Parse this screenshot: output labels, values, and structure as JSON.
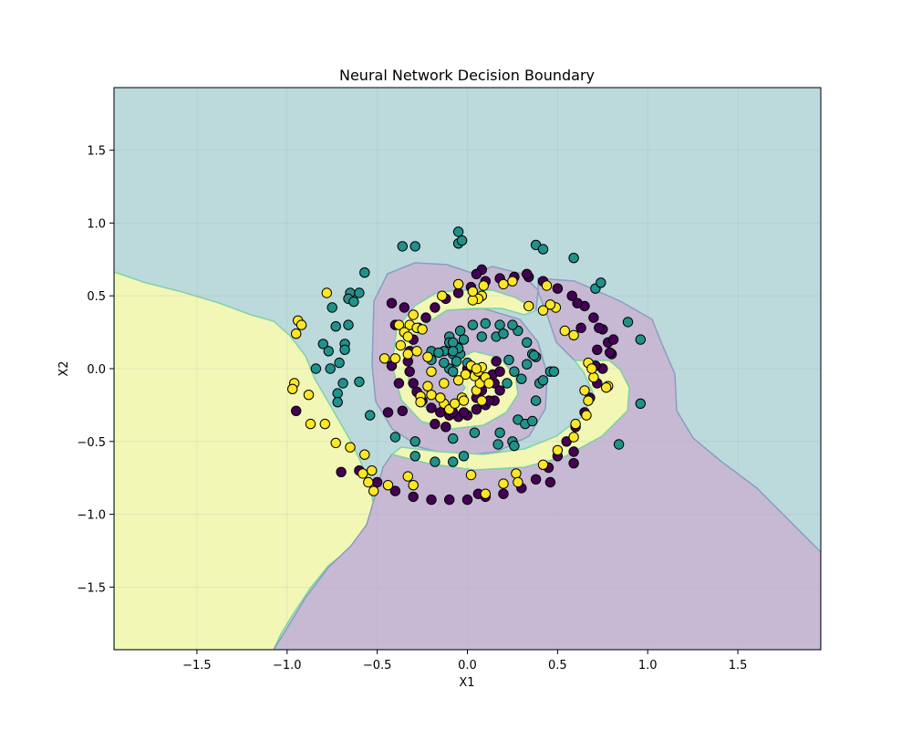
{
  "chart_data": {
    "type": "scatter",
    "title": "Neural Network Decision Boundary",
    "xlabel": "X1",
    "ylabel": "X2",
    "xlim": [
      -1.96,
      1.96
    ],
    "ylim": [
      -1.93,
      1.93
    ],
    "xticks": [
      -1.5,
      -1.0,
      -0.5,
      0.0,
      0.5,
      1.0,
      1.5
    ],
    "yticks": [
      -1.5,
      -1.0,
      -0.5,
      0.0,
      0.5,
      1.0,
      1.5
    ],
    "xtick_labels": [
      "−1.5",
      "−1.0",
      "−0.5",
      "0.0",
      "0.5",
      "1.0",
      "1.5"
    ],
    "ytick_labels": [
      "−1.5",
      "−1.0",
      "−0.5",
      "0.0",
      "0.5",
      "1.0",
      "1.5"
    ],
    "grid": true,
    "colors": {
      "class_0": "#440154",
      "class_1": "#21918c",
      "class_2": "#fde725",
      "region_0": "#c7b9d4",
      "region_1": "#bcd9dc",
      "region_2": "#f2f7b6"
    },
    "series": [
      {
        "class": 0,
        "points": [
          [
            0.0,
            0.0
          ],
          [
            0.05,
            -0.05
          ],
          [
            0.1,
            -0.08
          ],
          [
            0.15,
            -0.1
          ],
          [
            0.18,
            -0.15
          ],
          [
            0.15,
            -0.22
          ],
          [
            0.1,
            -0.25
          ],
          [
            0.05,
            -0.28
          ],
          [
            0.0,
            -0.32
          ],
          [
            -0.05,
            -0.33
          ],
          [
            -0.1,
            -0.32
          ],
          [
            -0.15,
            -0.3
          ],
          [
            -0.2,
            -0.27
          ],
          [
            -0.25,
            -0.22
          ],
          [
            -0.28,
            -0.16
          ],
          [
            -0.3,
            -0.1
          ],
          [
            -0.32,
            -0.02
          ],
          [
            -0.33,
            0.05
          ],
          [
            -0.32,
            0.12
          ],
          [
            -0.3,
            0.2
          ],
          [
            -0.27,
            0.28
          ],
          [
            -0.23,
            0.35
          ],
          [
            -0.18,
            0.42
          ],
          [
            -0.12,
            0.48
          ],
          [
            -0.05,
            0.52
          ],
          [
            0.02,
            0.56
          ],
          [
            0.1,
            0.6
          ],
          [
            0.18,
            0.62
          ],
          [
            0.26,
            0.63
          ],
          [
            0.34,
            0.63
          ],
          [
            0.42,
            0.6
          ],
          [
            0.5,
            0.55
          ],
          [
            0.58,
            0.5
          ],
          [
            0.65,
            0.43
          ],
          [
            0.7,
            0.35
          ],
          [
            0.75,
            0.27
          ],
          [
            0.78,
            0.18
          ],
          [
            0.8,
            0.1
          ],
          [
            0.75,
            0.0
          ],
          [
            0.72,
            -0.1
          ],
          [
            0.68,
            -0.2
          ],
          [
            0.65,
            -0.3
          ],
          [
            0.6,
            -0.4
          ],
          [
            0.55,
            -0.5
          ],
          [
            0.5,
            -0.6
          ],
          [
            0.45,
            -0.68
          ],
          [
            0.38,
            -0.76
          ],
          [
            0.3,
            -0.82
          ],
          [
            0.2,
            -0.86
          ],
          [
            0.1,
            -0.88
          ],
          [
            0.0,
            -0.9
          ],
          [
            -0.1,
            -0.9
          ],
          [
            -0.2,
            -0.9
          ],
          [
            -0.3,
            -0.88
          ],
          [
            -0.4,
            -0.84
          ],
          [
            -0.5,
            -0.78
          ],
          [
            -0.6,
            -0.7
          ],
          [
            -0.7,
            -0.71
          ],
          [
            -0.95,
            -0.29
          ],
          [
            0.06,
            -0.86
          ],
          [
            -0.42,
            0.45
          ],
          [
            -0.35,
            0.42
          ],
          [
            -0.4,
            0.3
          ],
          [
            -0.38,
            -0.1
          ],
          [
            -0.42,
            0.02
          ],
          [
            -0.44,
            -0.3
          ],
          [
            -0.36,
            -0.29
          ],
          [
            0.08,
            0.68
          ],
          [
            0.05,
            0.65
          ],
          [
            0.33,
            0.65
          ],
          [
            0.73,
            0.28
          ],
          [
            0.72,
            0.13
          ],
          [
            0.81,
            0.2
          ],
          [
            0.61,
            0.45
          ],
          [
            0.63,
            0.28
          ],
          [
            0.59,
            -0.57
          ],
          [
            0.59,
            -0.65
          ],
          [
            0.46,
            -0.78
          ],
          [
            0.79,
            0.11
          ],
          [
            0.71,
            0.02
          ],
          [
            -0.18,
            -0.38
          ],
          [
            -0.12,
            -0.4
          ],
          [
            -0.08,
            -0.3
          ],
          [
            -0.02,
            -0.3
          ],
          [
            0.05,
            -0.2
          ],
          [
            0.08,
            -0.15
          ],
          [
            0.12,
            -0.22
          ],
          [
            0.14,
            -0.04
          ],
          [
            0.18,
            -0.02
          ],
          [
            0.16,
            0.05
          ]
        ]
      },
      {
        "class": 1,
        "points": [
          [
            -0.05,
            0.94
          ],
          [
            -0.05,
            0.86
          ],
          [
            -0.03,
            0.88
          ],
          [
            -0.36,
            0.84
          ],
          [
            -0.29,
            0.84
          ],
          [
            0.38,
            0.85
          ],
          [
            0.42,
            0.82
          ],
          [
            0.59,
            0.76
          ],
          [
            0.71,
            0.55
          ],
          [
            0.74,
            0.59
          ],
          [
            0.89,
            0.32
          ],
          [
            0.96,
            0.2
          ],
          [
            0.96,
            -0.24
          ],
          [
            0.84,
            -0.52
          ],
          [
            -0.57,
            0.66
          ],
          [
            -0.65,
            0.52
          ],
          [
            -0.6,
            0.52
          ],
          [
            -0.66,
            0.48
          ],
          [
            -0.63,
            0.46
          ],
          [
            -0.75,
            0.42
          ],
          [
            -0.73,
            0.29
          ],
          [
            -0.66,
            0.3
          ],
          [
            -0.8,
            0.17
          ],
          [
            -0.68,
            0.17
          ],
          [
            -0.77,
            0.12
          ],
          [
            -0.68,
            0.13
          ],
          [
            -0.71,
            0.04
          ],
          [
            -0.76,
            0.0
          ],
          [
            -0.84,
            0.0
          ],
          [
            -0.6,
            -0.09
          ],
          [
            -0.69,
            -0.1
          ],
          [
            -0.72,
            -0.17
          ],
          [
            -0.72,
            -0.23
          ],
          [
            -0.54,
            -0.32
          ],
          [
            -0.4,
            -0.47
          ],
          [
            -0.29,
            -0.5
          ],
          [
            -0.29,
            -0.6
          ],
          [
            -0.08,
            -0.48
          ],
          [
            -0.18,
            -0.64
          ],
          [
            -0.08,
            -0.64
          ],
          [
            -0.02,
            -0.6
          ],
          [
            0.04,
            -0.44
          ],
          [
            0.17,
            -0.52
          ],
          [
            0.18,
            -0.44
          ],
          [
            0.25,
            -0.5
          ],
          [
            0.26,
            -0.53
          ],
          [
            0.28,
            -0.35
          ],
          [
            0.32,
            -0.38
          ],
          [
            0.36,
            -0.36
          ],
          [
            0.38,
            -0.22
          ],
          [
            0.4,
            -0.1
          ],
          [
            0.42,
            -0.08
          ],
          [
            0.46,
            -0.02
          ],
          [
            0.48,
            -0.02
          ],
          [
            0.38,
            0.08
          ],
          [
            0.36,
            0.1
          ],
          [
            0.33,
            0.18
          ],
          [
            0.28,
            0.26
          ],
          [
            0.25,
            0.3
          ],
          [
            0.18,
            0.3
          ],
          [
            0.1,
            0.31
          ],
          [
            0.03,
            0.3
          ],
          [
            -0.04,
            0.26
          ],
          [
            -0.1,
            0.22
          ],
          [
            -0.13,
            0.12
          ],
          [
            -0.08,
            0.1
          ],
          [
            -0.04,
            0.1
          ],
          [
            -0.06,
            0.15
          ],
          [
            -0.06,
            0.05
          ],
          [
            -0.1,
            0.0
          ],
          [
            -0.02,
            0.2
          ],
          [
            -0.05,
            0.14
          ],
          [
            -0.1,
            0.18
          ],
          [
            -0.2,
            0.12
          ],
          [
            -0.16,
            0.11
          ],
          [
            -0.13,
            0.04
          ],
          [
            0.0,
            0.04
          ],
          [
            -0.08,
            -0.02
          ],
          [
            0.08,
            0.22
          ],
          [
            0.16,
            0.22
          ],
          [
            0.2,
            0.24
          ],
          [
            0.23,
            0.06
          ],
          [
            0.26,
            -0.02
          ],
          [
            0.22,
            -0.1
          ],
          [
            0.3,
            -0.07
          ],
          [
            0.33,
            0.03
          ],
          [
            0.37,
            0.09
          ],
          [
            -0.08,
            0.18
          ],
          [
            -0.2,
            0.06
          ],
          [
            -0.08,
            0.12
          ]
        ]
      },
      {
        "class": 2,
        "points": [
          [
            -0.94,
            0.33
          ],
          [
            -0.92,
            0.3
          ],
          [
            -0.95,
            0.24
          ],
          [
            -0.96,
            -0.1
          ],
          [
            -0.97,
            -0.14
          ],
          [
            -0.88,
            -0.18
          ],
          [
            -0.87,
            -0.38
          ],
          [
            -0.79,
            -0.38
          ],
          [
            -0.73,
            -0.51
          ],
          [
            -0.65,
            -0.54
          ],
          [
            -0.57,
            -0.59
          ],
          [
            -0.58,
            -0.72
          ],
          [
            -0.55,
            -0.78
          ],
          [
            -0.53,
            -0.7
          ],
          [
            -0.52,
            -0.84
          ],
          [
            -0.44,
            -0.8
          ],
          [
            -0.33,
            -0.74
          ],
          [
            -0.3,
            -0.8
          ],
          [
            -0.78,
            0.52
          ],
          [
            0.02,
            -0.73
          ],
          [
            0.1,
            -0.86
          ],
          [
            0.2,
            -0.79
          ],
          [
            0.27,
            -0.72
          ],
          [
            0.28,
            -0.78
          ],
          [
            0.42,
            -0.66
          ],
          [
            0.5,
            -0.56
          ],
          [
            0.59,
            -0.47
          ],
          [
            0.6,
            -0.38
          ],
          [
            0.66,
            -0.32
          ],
          [
            0.67,
            -0.22
          ],
          [
            0.65,
            -0.15
          ],
          [
            0.7,
            -0.06
          ],
          [
            0.67,
            0.04
          ],
          [
            0.69,
            0.0
          ],
          [
            0.78,
            -0.12
          ],
          [
            0.77,
            -0.13
          ],
          [
            0.54,
            0.26
          ],
          [
            0.59,
            0.23
          ],
          [
            0.49,
            0.42
          ],
          [
            0.46,
            0.44
          ],
          [
            0.44,
            0.57
          ],
          [
            0.42,
            0.4
          ],
          [
            0.34,
            0.43
          ],
          [
            0.25,
            0.6
          ],
          [
            0.2,
            0.58
          ],
          [
            0.08,
            0.5
          ],
          [
            0.06,
            0.48
          ],
          [
            0.03,
            0.47
          ],
          [
            0.09,
            0.57
          ],
          [
            0.03,
            0.53
          ],
          [
            -0.05,
            0.58
          ],
          [
            -0.14,
            0.5
          ],
          [
            -0.3,
            0.37
          ],
          [
            -0.32,
            0.3
          ],
          [
            -0.38,
            0.3
          ],
          [
            -0.28,
            0.28
          ],
          [
            -0.35,
            0.25
          ],
          [
            -0.25,
            0.27
          ],
          [
            -0.37,
            0.16
          ],
          [
            -0.4,
            0.07
          ],
          [
            -0.46,
            0.07
          ],
          [
            -0.33,
            0.22
          ],
          [
            -0.33,
            0.1
          ],
          [
            -0.28,
            0.12
          ],
          [
            -0.22,
            0.08
          ],
          [
            -0.2,
            -0.02
          ],
          [
            -0.22,
            -0.12
          ],
          [
            -0.26,
            -0.19
          ],
          [
            -0.26,
            -0.23
          ],
          [
            -0.2,
            -0.18
          ],
          [
            -0.15,
            -0.2
          ],
          [
            -0.13,
            -0.24
          ],
          [
            -0.1,
            -0.28
          ],
          [
            -0.07,
            -0.24
          ],
          [
            -0.03,
            -0.2
          ],
          [
            -0.02,
            -0.22
          ],
          [
            0.08,
            -0.22
          ],
          [
            0.05,
            -0.15
          ],
          [
            0.07,
            -0.1
          ],
          [
            0.1,
            -0.06
          ],
          [
            0.12,
            -0.1
          ],
          [
            0.04,
            -0.05
          ],
          [
            0.06,
            -0.02
          ],
          [
            0.08,
            0.01
          ],
          [
            0.02,
            0.02
          ],
          [
            0.05,
            0.0
          ],
          [
            -0.01,
            -0.04
          ],
          [
            -0.05,
            -0.08
          ],
          [
            -0.13,
            -0.1
          ],
          [
            -0.15,
            -0.2
          ]
        ]
      }
    ]
  }
}
